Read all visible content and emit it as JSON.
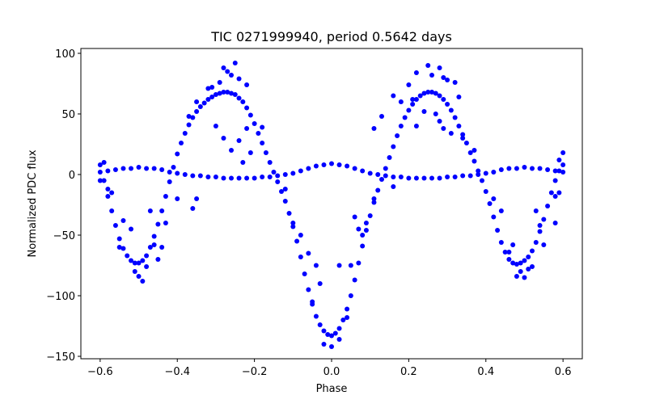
{
  "chart_data": {
    "type": "scatter",
    "title": "TIC 0271999940, period 0.5642 days",
    "xlabel": "Phase",
    "ylabel": "Normalized PDC flux",
    "xlim": [
      -0.65,
      0.65
    ],
    "ylim": [
      -152,
      104
    ],
    "xticks": [
      -0.6,
      -0.4,
      -0.2,
      0.0,
      0.2,
      0.4,
      0.6
    ],
    "xtick_labels": [
      "−0.6",
      "−0.4",
      "−0.2",
      "0.0",
      "0.2",
      "0.4",
      "0.6"
    ],
    "yticks": [
      -150,
      -100,
      -50,
      0,
      50,
      100
    ],
    "ytick_labels": [
      "−150",
      "−100",
      "−50",
      "0",
      "50",
      "100"
    ],
    "grid": false,
    "marker_color": "#0000ff",
    "series": [
      {
        "name": "",
        "points": [
          [
            -0.6,
            8
          ],
          [
            -0.59,
            -5
          ],
          [
            -0.58,
            -18
          ],
          [
            -0.57,
            -30
          ],
          [
            -0.56,
            -42
          ],
          [
            -0.55,
            -53
          ],
          [
            -0.54,
            -61
          ],
          [
            -0.53,
            -67
          ],
          [
            -0.52,
            -71
          ],
          [
            -0.51,
            -73
          ],
          [
            -0.5,
            -73
          ],
          [
            -0.49,
            -71
          ],
          [
            -0.48,
            -67
          ],
          [
            -0.47,
            -60
          ],
          [
            -0.46,
            -51
          ],
          [
            -0.45,
            -41
          ],
          [
            -0.44,
            -30
          ],
          [
            -0.43,
            -18
          ],
          [
            -0.42,
            -6
          ],
          [
            -0.41,
            6
          ],
          [
            -0.4,
            17
          ],
          [
            -0.39,
            26
          ],
          [
            -0.38,
            34
          ],
          [
            -0.37,
            41
          ],
          [
            -0.36,
            47
          ],
          [
            -0.35,
            52
          ],
          [
            -0.34,
            56
          ],
          [
            -0.33,
            59
          ],
          [
            -0.32,
            62
          ],
          [
            -0.31,
            64
          ],
          [
            -0.3,
            66
          ],
          [
            -0.29,
            67
          ],
          [
            -0.28,
            68
          ],
          [
            -0.27,
            68
          ],
          [
            -0.26,
            67
          ],
          [
            -0.25,
            66
          ],
          [
            -0.24,
            63
          ],
          [
            -0.23,
            60
          ],
          [
            -0.22,
            55
          ],
          [
            -0.21,
            49
          ],
          [
            -0.2,
            42
          ],
          [
            -0.19,
            34
          ],
          [
            -0.18,
            26
          ],
          [
            -0.17,
            18
          ],
          [
            -0.16,
            10
          ],
          [
            -0.15,
            2
          ],
          [
            -0.14,
            -6
          ],
          [
            -0.13,
            -14
          ],
          [
            -0.12,
            -22
          ],
          [
            -0.11,
            -32
          ],
          [
            -0.1,
            -43
          ],
          [
            -0.09,
            -55
          ],
          [
            -0.08,
            -68
          ],
          [
            -0.07,
            -82
          ],
          [
            -0.06,
            -95
          ],
          [
            -0.05,
            -107
          ],
          [
            -0.04,
            -117
          ],
          [
            -0.03,
            -124
          ],
          [
            -0.02,
            -129
          ],
          [
            -0.01,
            -132
          ],
          [
            0.0,
            -133
          ],
          [
            0.01,
            -131
          ],
          [
            0.02,
            -127
          ],
          [
            0.03,
            -120
          ],
          [
            0.04,
            -111
          ],
          [
            0.05,
            -100
          ],
          [
            0.06,
            -87
          ],
          [
            0.07,
            -73
          ],
          [
            0.08,
            -59
          ],
          [
            0.09,
            -46
          ],
          [
            0.1,
            -34
          ],
          [
            0.11,
            -23
          ],
          [
            0.12,
            -13
          ],
          [
            0.13,
            -4
          ],
          [
            0.14,
            5
          ],
          [
            0.15,
            14
          ],
          [
            0.16,
            23
          ],
          [
            0.17,
            32
          ],
          [
            0.18,
            40
          ],
          [
            0.19,
            47
          ],
          [
            0.2,
            53
          ],
          [
            0.21,
            58
          ],
          [
            0.22,
            62
          ],
          [
            0.23,
            65
          ],
          [
            0.24,
            67
          ],
          [
            0.25,
            68
          ],
          [
            0.26,
            68
          ],
          [
            0.27,
            67
          ],
          [
            0.28,
            65
          ],
          [
            0.29,
            62
          ],
          [
            0.3,
            58
          ],
          [
            0.31,
            53
          ],
          [
            0.32,
            47
          ],
          [
            0.33,
            40
          ],
          [
            0.34,
            33
          ],
          [
            0.35,
            26
          ],
          [
            0.36,
            18
          ],
          [
            0.37,
            11
          ],
          [
            0.38,
            3
          ],
          [
            0.39,
            -5
          ],
          [
            0.4,
            -14
          ],
          [
            0.41,
            -24
          ],
          [
            0.42,
            -35
          ],
          [
            0.43,
            -46
          ],
          [
            0.44,
            -56
          ],
          [
            0.45,
            -64
          ],
          [
            0.46,
            -70
          ],
          [
            0.47,
            -73
          ],
          [
            0.48,
            -74
          ],
          [
            0.49,
            -73
          ],
          [
            0.5,
            -71
          ],
          [
            0.51,
            -68
          ],
          [
            0.52,
            -63
          ],
          [
            0.53,
            -56
          ],
          [
            0.54,
            -47
          ],
          [
            0.55,
            -37
          ],
          [
            0.56,
            -26
          ],
          [
            0.57,
            -15
          ],
          [
            0.58,
            -5
          ],
          [
            0.59,
            3
          ],
          [
            0.6,
            8
          ],
          [
            -0.6,
            2
          ],
          [
            -0.58,
            3
          ],
          [
            -0.56,
            4
          ],
          [
            -0.54,
            5
          ],
          [
            -0.52,
            5
          ],
          [
            -0.5,
            6
          ],
          [
            -0.48,
            5
          ],
          [
            -0.46,
            5
          ],
          [
            -0.44,
            4
          ],
          [
            -0.42,
            2
          ],
          [
            -0.4,
            1
          ],
          [
            -0.38,
            0
          ],
          [
            -0.36,
            -1
          ],
          [
            -0.34,
            -1
          ],
          [
            -0.32,
            -2
          ],
          [
            -0.3,
            -2
          ],
          [
            -0.28,
            -3
          ],
          [
            -0.26,
            -3
          ],
          [
            -0.24,
            -3
          ],
          [
            -0.22,
            -3
          ],
          [
            -0.2,
            -3
          ],
          [
            -0.18,
            -2
          ],
          [
            -0.16,
            -2
          ],
          [
            -0.14,
            -1
          ],
          [
            -0.12,
            0
          ],
          [
            -0.1,
            1
          ],
          [
            -0.08,
            3
          ],
          [
            -0.06,
            5
          ],
          [
            -0.04,
            7
          ],
          [
            -0.02,
            8
          ],
          [
            0.0,
            9
          ],
          [
            0.02,
            8
          ],
          [
            0.04,
            7
          ],
          [
            0.06,
            5
          ],
          [
            0.08,
            3
          ],
          [
            0.1,
            1
          ],
          [
            0.12,
            0
          ],
          [
            0.14,
            -1
          ],
          [
            0.16,
            -2
          ],
          [
            0.18,
            -2
          ],
          [
            0.2,
            -3
          ],
          [
            0.22,
            -3
          ],
          [
            0.24,
            -3
          ],
          [
            0.26,
            -3
          ],
          [
            0.28,
            -3
          ],
          [
            0.3,
            -2
          ],
          [
            0.32,
            -2
          ],
          [
            0.34,
            -1
          ],
          [
            0.36,
            -1
          ],
          [
            0.38,
            0
          ],
          [
            0.4,
            1
          ],
          [
            0.42,
            2
          ],
          [
            0.44,
            4
          ],
          [
            0.46,
            5
          ],
          [
            0.48,
            5
          ],
          [
            0.5,
            6
          ],
          [
            0.52,
            5
          ],
          [
            0.54,
            5
          ],
          [
            0.56,
            4
          ],
          [
            0.58,
            3
          ],
          [
            0.6,
            2
          ],
          [
            -0.31,
            72
          ],
          [
            -0.28,
            88
          ],
          [
            -0.27,
            85
          ],
          [
            -0.25,
            92
          ],
          [
            -0.24,
            79
          ],
          [
            -0.26,
            82
          ],
          [
            -0.29,
            76
          ],
          [
            -0.22,
            74
          ],
          [
            -0.32,
            71
          ],
          [
            -0.3,
            40
          ],
          [
            -0.28,
            30
          ],
          [
            -0.26,
            20
          ],
          [
            -0.22,
            38
          ],
          [
            -0.24,
            28
          ],
          [
            -0.18,
            39
          ],
          [
            -0.21,
            18
          ],
          [
            -0.37,
            48
          ],
          [
            -0.35,
            60
          ],
          [
            -0.23,
            10
          ],
          [
            0.25,
            90
          ],
          [
            0.28,
            88
          ],
          [
            0.22,
            84
          ],
          [
            0.29,
            80
          ],
          [
            0.3,
            78
          ],
          [
            0.2,
            74
          ],
          [
            0.26,
            82
          ],
          [
            0.32,
            76
          ],
          [
            0.33,
            64
          ],
          [
            0.21,
            62
          ],
          [
            0.24,
            52
          ],
          [
            0.27,
            50
          ],
          [
            0.29,
            38
          ],
          [
            0.31,
            34
          ],
          [
            0.28,
            44
          ],
          [
            0.18,
            60
          ],
          [
            0.13,
            48
          ],
          [
            0.11,
            38
          ],
          [
            0.16,
            65
          ],
          [
            0.22,
            40
          ],
          [
            0.34,
            30
          ],
          [
            0.37,
            20
          ],
          [
            -0.49,
            -88
          ],
          [
            -0.5,
            -84
          ],
          [
            -0.51,
            -80
          ],
          [
            -0.48,
            -76
          ],
          [
            -0.46,
            -58
          ],
          [
            -0.45,
            -70
          ],
          [
            -0.55,
            -60
          ],
          [
            -0.54,
            -38
          ],
          [
            -0.52,
            -45
          ],
          [
            -0.57,
            -15
          ],
          [
            -0.4,
            -20
          ],
          [
            -0.43,
            -40
          ],
          [
            -0.47,
            -30
          ],
          [
            -0.44,
            -60
          ],
          [
            0.5,
            -85
          ],
          [
            0.49,
            -80
          ],
          [
            0.51,
            -78
          ],
          [
            0.48,
            -84
          ],
          [
            0.52,
            -76
          ],
          [
            0.46,
            -64
          ],
          [
            0.47,
            -58
          ],
          [
            0.55,
            -58
          ],
          [
            0.54,
            -42
          ],
          [
            0.58,
            -40
          ],
          [
            0.42,
            -20
          ],
          [
            0.44,
            -30
          ],
          [
            0.53,
            -30
          ],
          [
            -0.02,
            -140
          ],
          [
            0.02,
            -136
          ],
          [
            0.0,
            -142
          ],
          [
            -0.05,
            -105
          ],
          [
            0.04,
            -118
          ],
          [
            -0.03,
            -90
          ],
          [
            0.05,
            -75
          ],
          [
            -0.06,
            -65
          ],
          [
            0.07,
            -45
          ],
          [
            -0.08,
            -50
          ],
          [
            0.09,
            -40
          ],
          [
            -0.1,
            -40
          ],
          [
            0.06,
            -35
          ],
          [
            0.02,
            -75
          ],
          [
            -0.04,
            -75
          ],
          [
            0.11,
            -20
          ],
          [
            0.08,
            -50
          ],
          [
            -0.59,
            10
          ],
          [
            -0.58,
            -12
          ],
          [
            0.59,
            12
          ],
          [
            0.6,
            18
          ],
          [
            0.58,
            -18
          ],
          [
            0.59,
            -15
          ],
          [
            -0.35,
            -20
          ],
          [
            -0.36,
            -28
          ],
          [
            -0.12,
            -12
          ],
          [
            0.16,
            -10
          ],
          [
            -0.6,
            -5
          ]
        ]
      }
    ]
  }
}
